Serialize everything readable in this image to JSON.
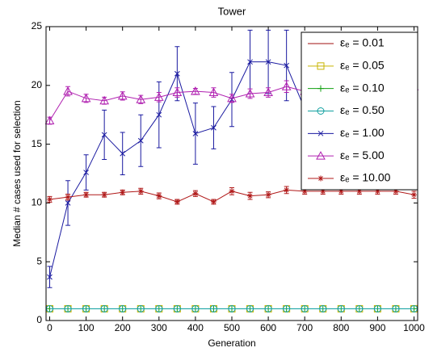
{
  "chart_data": {
    "type": "line",
    "title": "Tower",
    "xlabel": "Generation",
    "ylabel": "Median # cases used for selection",
    "x": [
      0,
      50,
      100,
      150,
      200,
      250,
      300,
      350,
      400,
      450,
      500,
      550,
      600,
      650,
      700,
      750,
      800,
      850,
      900,
      950,
      1000
    ],
    "xlim": [
      -10,
      1010
    ],
    "xticks": [
      0,
      100,
      200,
      300,
      400,
      500,
      600,
      700,
      800,
      900,
      1000
    ],
    "ylim": [
      0,
      25
    ],
    "yticks": [
      0,
      5,
      10,
      15,
      20,
      25
    ],
    "legend": "northeast",
    "series": [
      {
        "name": "εₑ = 0.01",
        "color": "#a01010",
        "marker": "none",
        "values": [
          1,
          1,
          1,
          1,
          1,
          1,
          1,
          1,
          1,
          1,
          1,
          1,
          1,
          1,
          1,
          1,
          1,
          1,
          1,
          1,
          1
        ]
      },
      {
        "name": "εₑ = 0.05",
        "color": "#c8b400",
        "marker": "square",
        "values": [
          1,
          1,
          1,
          1,
          1,
          1,
          1,
          1,
          1,
          1,
          1,
          1,
          1,
          1,
          1,
          1,
          1,
          1,
          1,
          1,
          1
        ]
      },
      {
        "name": "εₑ = 0.10",
        "color": "#10a010",
        "marker": "plus",
        "values": [
          1,
          1,
          1,
          1,
          1,
          1,
          1,
          1,
          1,
          1,
          1,
          1,
          1,
          1,
          1,
          1,
          1,
          1,
          1,
          1,
          1
        ]
      },
      {
        "name": "εₑ = 0.50",
        "color": "#10a0a0",
        "marker": "circle",
        "values": [
          1,
          1,
          1,
          1,
          1,
          1,
          1,
          1,
          1,
          1,
          1,
          1,
          1,
          1,
          1,
          1,
          1,
          1,
          1,
          1,
          1
        ]
      },
      {
        "name": "εₑ = 1.00",
        "color": "#1a1aa0",
        "marker": "x",
        "values": [
          3.7,
          10.0,
          12.6,
          15.8,
          14.2,
          15.3,
          17.5,
          21.0,
          15.9,
          16.4,
          18.8,
          22.0,
          22.0,
          21.7,
          18.0,
          19.0,
          19.5,
          20.0,
          20.0,
          20.5,
          21.0
        ],
        "errors": [
          0.9,
          1.9,
          1.5,
          2.1,
          1.8,
          2.2,
          2.8,
          2.3,
          2.6,
          1.8,
          2.3,
          2.7,
          2.7,
          3.0,
          2.2,
          2.2,
          2.2,
          2.2,
          2.2,
          2.2,
          2.2
        ]
      },
      {
        "name": "εₑ = 5.00",
        "color": "#b020b0",
        "marker": "triangle",
        "values": [
          17.0,
          19.5,
          18.9,
          18.7,
          19.1,
          18.8,
          19.0,
          19.4,
          19.5,
          19.4,
          18.9,
          19.3,
          19.4,
          19.9,
          19.5,
          19.5,
          19.5,
          19.5,
          19.6,
          19.7,
          19.9
        ],
        "errors": [
          0.3,
          0.4,
          0.35,
          0.3,
          0.35,
          0.35,
          0.4,
          0.4,
          0.25,
          0.4,
          0.35,
          0.4,
          0.4,
          0.5,
          0.4,
          0.4,
          0.4,
          0.4,
          0.4,
          0.4,
          0.5
        ]
      },
      {
        "name": "εₑ = 10.00",
        "color": "#b01818",
        "marker": "star",
        "values": [
          10.3,
          10.5,
          10.7,
          10.7,
          10.9,
          11.0,
          10.6,
          10.1,
          10.8,
          10.1,
          11.0,
          10.6,
          10.7,
          11.1,
          11.0,
          11.0,
          11.0,
          11.0,
          11.0,
          11.0,
          10.7
        ],
        "errors": [
          0.25,
          0.25,
          0.2,
          0.2,
          0.2,
          0.25,
          0.25,
          0.2,
          0.25,
          0.2,
          0.3,
          0.3,
          0.25,
          0.3,
          0.25,
          0.25,
          0.25,
          0.25,
          0.25,
          0.25,
          0.3
        ]
      }
    ]
  }
}
